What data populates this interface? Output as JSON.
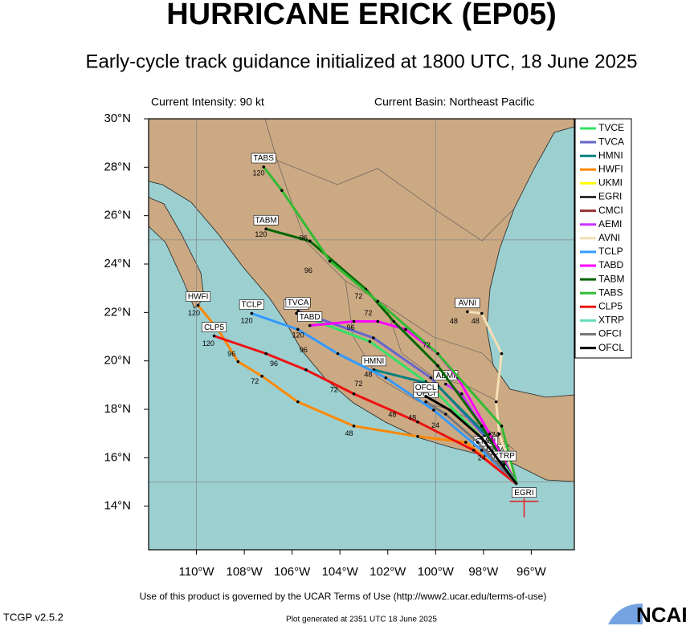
{
  "header": {
    "title": "HURRICANE ERICK (EP05)",
    "subtitle": "Early-cycle track guidance initialized at 1800 UTC, 18 June 2025",
    "intensity": "Current Intensity: 90 kt",
    "basin": "Current Basin: Northeast Pacific"
  },
  "map": {
    "lonlim": [
      -112,
      -94.2
    ],
    "latlim": [
      12.2,
      30
    ],
    "lonticks": [
      {
        "value": -110,
        "label": "110°W"
      },
      {
        "value": -108,
        "label": "108°W"
      },
      {
        "value": -106,
        "label": "106°W"
      },
      {
        "value": -104,
        "label": "104°W"
      },
      {
        "value": -102,
        "label": "102°W"
      },
      {
        "value": -100,
        "label": "100°W"
      },
      {
        "value": -98,
        "label": "98°W"
      },
      {
        "value": -96,
        "label": "96°W"
      }
    ],
    "latticks": [
      {
        "value": 14,
        "label": "14°N"
      },
      {
        "value": 16,
        "label": "16°N"
      },
      {
        "value": 18,
        "label": "18°N"
      },
      {
        "value": 20,
        "label": "20°N"
      },
      {
        "value": 22,
        "label": "22°N"
      },
      {
        "value": 24,
        "label": "24°N"
      },
      {
        "value": 26,
        "label": "26°N"
      },
      {
        "value": 28,
        "label": "28°N"
      },
      {
        "value": 30,
        "label": "30°N"
      }
    ],
    "grid_lon": [
      -110,
      -100
    ],
    "grid_lat": [
      15,
      25
    ],
    "current_position": {
      "lon": -96.3,
      "lat": 14.2,
      "color": "#e02020"
    },
    "tracks": [
      {
        "name": "TVCE",
        "color": "#33e066",
        "lon": [
          -96.6,
          -98.07,
          -100.41,
          -102.75,
          -105.82
        ],
        "lat": [
          14.9,
          16.81,
          19.14,
          20.8,
          21.96
        ]
      },
      {
        "name": "TVCA",
        "color": "#6666cc",
        "lon": [
          -96.6,
          -97.95,
          -100.2,
          -102.6,
          -105.75
        ],
        "lat": [
          14.9,
          16.9,
          19.3,
          20.95,
          22.05
        ]
      },
      {
        "name": "HMNI",
        "color": "#008080",
        "lon": [
          -96.6,
          -97.74,
          -99.91,
          -102.58
        ],
        "lat": [
          14.9,
          16.81,
          18.97,
          19.63
        ]
      },
      {
        "name": "HWFI",
        "color": "#ff8800",
        "lon": [
          -96.6,
          -98.74,
          -100.75,
          -103.42,
          -105.76,
          -107.26,
          -108.26,
          -109.1,
          -109.93
        ],
        "lat": [
          14.9,
          16.64,
          16.88,
          17.31,
          18.31,
          19.37,
          19.97,
          21.3,
          22.29
        ]
      },
      {
        "name": "UKMI",
        "color": "#ffff00",
        "lon": [
          -96.6,
          -97.47
        ],
        "lat": [
          14.9,
          15.98
        ]
      },
      {
        "name": "EGRI",
        "color": "#333333",
        "lon": [
          -96.3
        ],
        "lat": [
          14.2
        ]
      },
      {
        "name": "CMCI",
        "color": "#993333",
        "lon": [
          -96.6,
          -97.91
        ],
        "lat": [
          14.9,
          16.31
        ]
      },
      {
        "name": "AEMI",
        "color": "#cc33ff",
        "lon": [
          -96.6,
          -98.07,
          -98.91,
          -99.58
        ],
        "lat": [
          14.9,
          17.31,
          18.64,
          19.04
        ]
      },
      {
        "name": "AVNI",
        "color": "#f5deb3",
        "lon": [
          -96.6,
          -97.34,
          -97.47,
          -97.24,
          -98.07,
          -98.67
        ],
        "lat": [
          14.9,
          16.98,
          18.31,
          20.3,
          21.96,
          22.03
        ]
      },
      {
        "name": "TCLP",
        "color": "#3399ff",
        "lon": [
          -96.6,
          -98.07,
          -100.08,
          -102.08,
          -104.09,
          -105.76,
          -107.69
        ],
        "lat": [
          14.9,
          16.31,
          17.97,
          19.3,
          20.3,
          21.3,
          21.96
        ]
      },
      {
        "name": "TABD",
        "color": "#ff00ff",
        "lon": [
          -96.6,
          -97.74,
          -99.07,
          -99.91,
          -101.25,
          -102.42,
          -103.42,
          -105.26
        ],
        "lat": [
          14.9,
          16.98,
          19.3,
          20.3,
          21.3,
          21.63,
          21.63,
          21.46
        ]
      },
      {
        "name": "TABM",
        "color": "#006600",
        "lon": [
          -96.6,
          -98.07,
          -99.91,
          -101.75,
          -102.92,
          -105.26,
          -107.09
        ],
        "lat": [
          14.9,
          17.31,
          19.8,
          21.63,
          22.96,
          24.95,
          25.45
        ]
      },
      {
        "name": "TABS",
        "color": "#33bb33",
        "lon": [
          -96.6,
          -97.24,
          -99.91,
          -102.42,
          -104.42,
          -106.43,
          -107.19
        ],
        "lat": [
          14.9,
          17.31,
          20.3,
          22.46,
          24.12,
          27.04,
          28.01
        ]
      },
      {
        "name": "CLP5",
        "color": "#ee1111",
        "lon": [
          -96.6,
          -98.41,
          -100.75,
          -103.42,
          -105.42,
          -107.09,
          -109.26
        ],
        "lat": [
          14.9,
          16.31,
          17.48,
          18.64,
          19.63,
          20.3,
          21.03
        ]
      },
      {
        "name": "XTRP",
        "color": "#66ddbb",
        "lon": [
          -96.6,
          -97.14
        ],
        "lat": [
          14.9,
          15.71
        ]
      },
      {
        "name": "OFCI",
        "color": "#777777",
        "lon": [
          -96.6,
          -98.24,
          -99.58,
          -100.41
        ],
        "lat": [
          14.9,
          16.64,
          17.8,
          18.31
        ]
      },
      {
        "name": "OFCL",
        "color": "#000000",
        "lon": [
          -96.6,
          -98.07,
          -99.41,
          -100.41
        ],
        "lat": [
          14.9,
          16.81,
          17.97,
          18.54
        ]
      }
    ],
    "hour_labels": [
      {
        "label": "120",
        "lon": -107.4,
        "lat": 27.75
      },
      {
        "label": "120",
        "lon": -107.3,
        "lat": 25.2
      },
      {
        "label": "120",
        "lon": -107.9,
        "lat": 21.65
      },
      {
        "label": "120",
        "lon": -105.75,
        "lat": 21.05
      },
      {
        "label": "120",
        "lon": -110.1,
        "lat": 21.95
      },
      {
        "label": "120",
        "lon": -109.5,
        "lat": 20.7
      },
      {
        "label": "96",
        "lon": -105.52,
        "lat": 25.05
      },
      {
        "label": "96",
        "lon": -105.32,
        "lat": 23.72
      },
      {
        "label": "72",
        "lon": -103.22,
        "lat": 22.66
      },
      {
        "label": "72",
        "lon": -102.82,
        "lat": 21.96
      },
      {
        "label": "96",
        "lon": -103.55,
        "lat": 21.36
      },
      {
        "label": "72",
        "lon": -100.38,
        "lat": 20.63
      },
      {
        "label": "96",
        "lon": -105.52,
        "lat": 20.43
      },
      {
        "label": "96",
        "lon": -106.76,
        "lat": 19.87
      },
      {
        "label": "96",
        "lon": -108.53,
        "lat": 20.27
      },
      {
        "label": "72",
        "lon": -107.56,
        "lat": 19.14
      },
      {
        "label": "72",
        "lon": -104.25,
        "lat": 18.8
      },
      {
        "label": "72",
        "lon": -103.22,
        "lat": 19.04
      },
      {
        "label": "48",
        "lon": -102.82,
        "lat": 19.43
      },
      {
        "label": "48",
        "lon": -103.62,
        "lat": 16.98
      },
      {
        "label": "48",
        "lon": -101.81,
        "lat": 17.77
      },
      {
        "label": "48",
        "lon": -100.98,
        "lat": 17.64
      },
      {
        "label": "48",
        "lon": -99.24,
        "lat": 21.63
      },
      {
        "label": "48",
        "lon": -98.34,
        "lat": 21.63
      },
      {
        "label": "24",
        "lon": -100.01,
        "lat": 17.31
      },
      {
        "label": "24",
        "lon": -97.74,
        "lat": 16.71
      },
      {
        "label": "24",
        "lon": -98.07,
        "lat": 15.98
      },
      {
        "label": "24",
        "lon": -97.5,
        "lat": 16.94
      }
    ]
  },
  "footer": {
    "terms": "Use of this product is governed by the UCAR Terms of Use (http://www2.ucar.edu/terms-of-use)",
    "version": "TCGP v2.5.2",
    "generated": "Plot generated at 2351 UTC   18 June 2025",
    "logo": "NCAR"
  }
}
